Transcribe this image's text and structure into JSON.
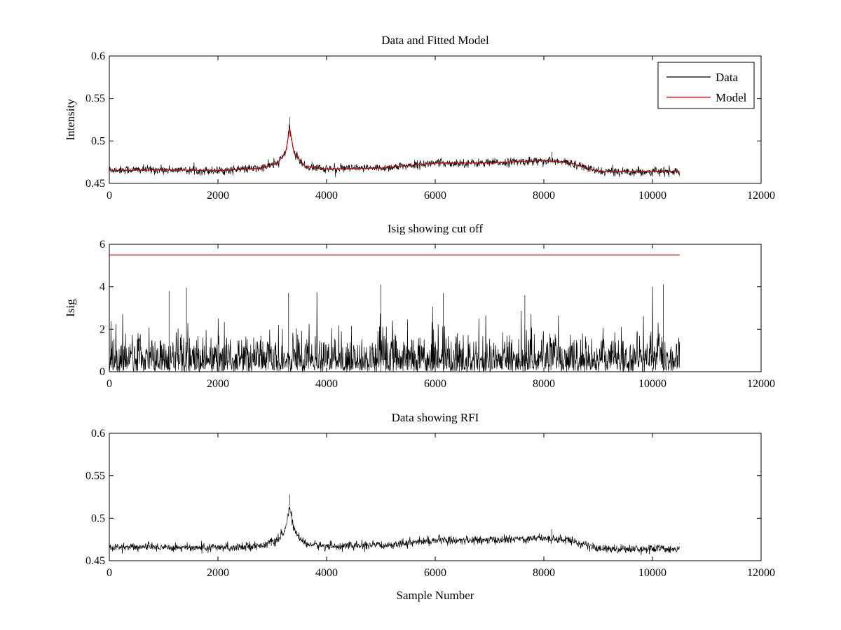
{
  "colors": {
    "data": "#000000",
    "model": "#cc0000",
    "axes": "#000000",
    "background": "#ffffff"
  },
  "chart_data": [
    {
      "type": "line",
      "title": "Data and Fitted Model",
      "xlabel": "",
      "ylabel": "Intensity",
      "xlim": [
        0,
        12000
      ],
      "ylim": [
        0.45,
        0.6
      ],
      "xticks": [
        0,
        2000,
        4000,
        6000,
        8000,
        10000,
        12000
      ],
      "xtick_labels": [
        "0",
        "2000",
        "4000",
        "6000",
        "8000",
        "10000",
        "12000"
      ],
      "yticks": [
        0.45,
        0.5,
        0.55,
        0.6
      ],
      "ytick_labels": [
        "0.45",
        "0.5",
        "0.55",
        "0.6"
      ],
      "grid": false,
      "legend": {
        "position": "top-right",
        "entries": [
          "Data",
          "Model"
        ]
      },
      "series": [
        {
          "name": "Data",
          "color": "#000000",
          "kind": "noisy",
          "x_range": [
            0,
            10500
          ],
          "noise_amplitude": 0.0045,
          "baseline": [
            [
              0,
              0.466
            ],
            [
              1000,
              0.466
            ],
            [
              2000,
              0.465
            ],
            [
              2800,
              0.468
            ],
            [
              3100,
              0.474
            ],
            [
              3250,
              0.487
            ],
            [
              3320,
              0.515
            ],
            [
              3400,
              0.486
            ],
            [
              3600,
              0.47
            ],
            [
              4000,
              0.467
            ],
            [
              5000,
              0.468
            ],
            [
              6000,
              0.474
            ],
            [
              7000,
              0.474
            ],
            [
              8000,
              0.477
            ],
            [
              8500,
              0.474
            ],
            [
              9000,
              0.464
            ],
            [
              10500,
              0.464
            ]
          ],
          "spikes": [
            [
              3320,
              0.528
            ],
            [
              8150,
              0.487
            ]
          ]
        },
        {
          "name": "Model",
          "color": "#cc0000",
          "kind": "smooth",
          "x_range": [
            0,
            10500
          ],
          "values": [
            [
              0,
              0.465
            ],
            [
              1000,
              0.466
            ],
            [
              2000,
              0.465
            ],
            [
              2800,
              0.468
            ],
            [
              3100,
              0.474
            ],
            [
              3250,
              0.487
            ],
            [
              3320,
              0.515
            ],
            [
              3400,
              0.486
            ],
            [
              3600,
              0.47
            ],
            [
              4000,
              0.467
            ],
            [
              5000,
              0.468
            ],
            [
              6000,
              0.474
            ],
            [
              7000,
              0.474
            ],
            [
              8000,
              0.477
            ],
            [
              8500,
              0.474
            ],
            [
              9000,
              0.464
            ],
            [
              10500,
              0.464
            ]
          ]
        }
      ]
    },
    {
      "type": "line",
      "title": "Isig showing cut off",
      "xlabel": "",
      "ylabel": "Isig",
      "xlim": [
        0,
        12000
      ],
      "ylim": [
        0,
        6
      ],
      "xticks": [
        0,
        2000,
        4000,
        6000,
        8000,
        10000,
        12000
      ],
      "xtick_labels": [
        "0",
        "2000",
        "4000",
        "6000",
        "8000",
        "10000",
        "12000"
      ],
      "yticks": [
        0,
        2,
        4,
        6
      ],
      "ytick_labels": [
        "0",
        "2",
        "4",
        "6"
      ],
      "grid": false,
      "series": [
        {
          "color": "#000000",
          "kind": "halfnormal",
          "x_range": [
            0,
            10500
          ],
          "scale": 0.8,
          "spikes": [
            [
              1420,
              3.95
            ],
            [
              1100,
              3.8
            ],
            [
              5000,
              4.1
            ],
            [
              10200,
              4.1
            ],
            [
              3300,
              3.7
            ],
            [
              6150,
              3.7
            ],
            [
              7650,
              3.6
            ]
          ]
        },
        {
          "color": "#cc0000",
          "kind": "constant",
          "x_range": [
            0,
            10500
          ],
          "value": 5.5
        }
      ]
    },
    {
      "type": "line",
      "title": "Data showing RFI",
      "xlabel": "Sample Number",
      "ylabel": "",
      "xlim": [
        0,
        12000
      ],
      "ylim": [
        0.45,
        0.6
      ],
      "xticks": [
        0,
        2000,
        4000,
        6000,
        8000,
        10000,
        12000
      ],
      "xtick_labels": [
        "0",
        "2000",
        "4000",
        "6000",
        "8000",
        "10000",
        "12000"
      ],
      "yticks": [
        0.45,
        0.5,
        0.55,
        0.6
      ],
      "ytick_labels": [
        "0.45",
        "0.5",
        "0.55",
        "0.6"
      ],
      "grid": false,
      "series": [
        {
          "color": "#000000",
          "kind": "noisy",
          "x_range": [
            0,
            10500
          ],
          "noise_amplitude": 0.0045,
          "baseline": [
            [
              0,
              0.466
            ],
            [
              1000,
              0.466
            ],
            [
              2000,
              0.465
            ],
            [
              2800,
              0.468
            ],
            [
              3100,
              0.474
            ],
            [
              3250,
              0.487
            ],
            [
              3320,
              0.515
            ],
            [
              3400,
              0.486
            ],
            [
              3600,
              0.47
            ],
            [
              4000,
              0.467
            ],
            [
              5000,
              0.468
            ],
            [
              6000,
              0.474
            ],
            [
              7000,
              0.474
            ],
            [
              8000,
              0.477
            ],
            [
              8500,
              0.474
            ],
            [
              9000,
              0.464
            ],
            [
              10500,
              0.464
            ]
          ],
          "spikes": [
            [
              3320,
              0.528
            ],
            [
              8150,
              0.487
            ]
          ]
        }
      ]
    }
  ]
}
